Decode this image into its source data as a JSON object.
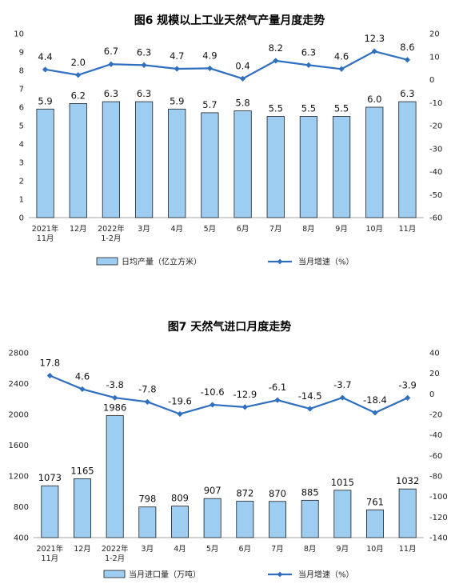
{
  "chart_data": [
    {
      "type": "bar+line",
      "title": "图6  规模以上工业天然气产量月度走势",
      "categories": [
        "2021年\n11月",
        "12月",
        "2022年\n1-2月",
        "3月",
        "4月",
        "5月",
        "6月",
        "7月",
        "8月",
        "9月",
        "10月",
        "11月"
      ],
      "series": [
        {
          "name": "日均产量（亿立方米）",
          "kind": "bar",
          "axis": "left",
          "values": [
            5.9,
            6.2,
            6.3,
            6.3,
            5.9,
            5.7,
            5.8,
            5.5,
            5.5,
            5.5,
            6.0,
            6.3
          ]
        },
        {
          "name": "当月增速（%）",
          "kind": "line",
          "axis": "right",
          "values": [
            4.4,
            2.0,
            6.7,
            6.3,
            4.7,
            4.9,
            0.4,
            8.2,
            6.3,
            4.6,
            12.3,
            8.6
          ]
        }
      ],
      "ylim_left": [
        0,
        10
      ],
      "yticks_left": [
        0,
        1,
        2,
        3,
        4,
        5,
        6,
        7,
        8,
        9,
        10
      ],
      "ylim_right": [
        -60,
        20
      ],
      "yticks_right": [
        20,
        10,
        0,
        -10,
        -20,
        -30,
        -40,
        -50,
        -60
      ],
      "legend_position": "bottom",
      "grid": false
    },
    {
      "type": "bar+line",
      "title": "图7  天然气进口月度走势",
      "categories": [
        "2021年\n11月",
        "12月",
        "2022年\n1-2月",
        "3月",
        "4月",
        "5月",
        "6月",
        "7月",
        "8月",
        "9月",
        "10月",
        "11月"
      ],
      "series": [
        {
          "name": "当月进口量（万吨）",
          "kind": "bar",
          "axis": "left",
          "values": [
            1073,
            1165,
            1986,
            798,
            809,
            907,
            872,
            870,
            885,
            1015,
            761,
            1032
          ]
        },
        {
          "name": "当月增速（%）",
          "kind": "line",
          "axis": "right",
          "values": [
            17.8,
            4.6,
            -3.8,
            -7.8,
            -19.6,
            -10.6,
            -12.9,
            -6.1,
            -14.5,
            -3.7,
            -18.4,
            -3.9
          ]
        }
      ],
      "ylim_left": [
        400,
        2800
      ],
      "yticks_left": [
        400,
        800,
        1200,
        1600,
        2000,
        2400,
        2800
      ],
      "ylim_right": [
        -140,
        40
      ],
      "yticks_right": [
        40,
        20,
        0,
        -20,
        -40,
        -60,
        -80,
        -100,
        -120,
        -140
      ],
      "legend_position": "bottom",
      "grid": false
    }
  ]
}
